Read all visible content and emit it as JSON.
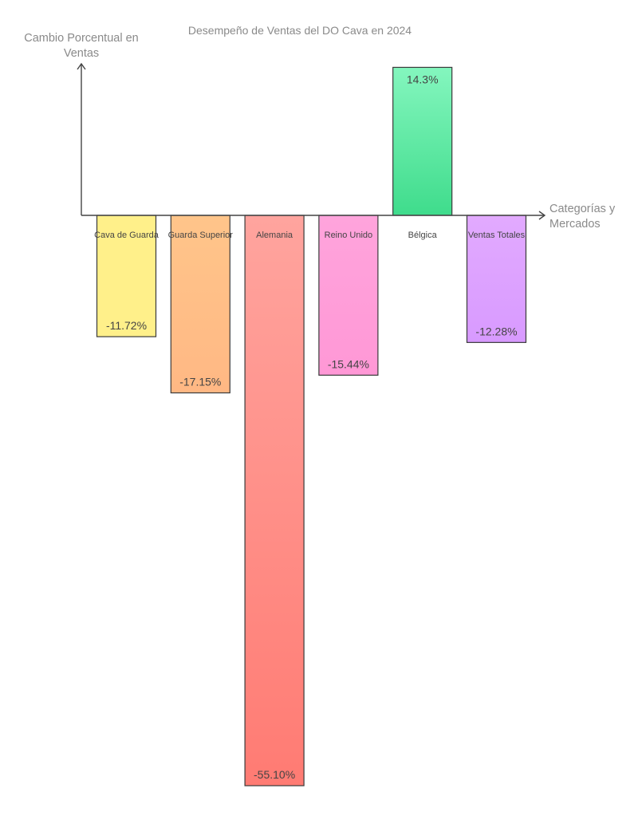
{
  "chart_data": {
    "type": "bar",
    "title": "Desempeño de Ventas del DO Cava en 2024",
    "ylabel": [
      "Cambio Porcentual en",
      "Ventas"
    ],
    "xlabel": [
      "Categorías y",
      "Mercados"
    ],
    "categories": [
      "Cava de Guarda",
      "Guarda Superior",
      "Alemania",
      "Reino Unido",
      "Bélgica",
      "Ventas Totales"
    ],
    "values": [
      -11.72,
      -17.15,
      -55.1,
      -15.44,
      14.3,
      -12.28
    ],
    "value_labels": [
      "-11.72%",
      "-17.15%",
      "-55.10%",
      "-15.44%",
      "14.3%",
      "-12.28%"
    ],
    "colors": [
      {
        "top": "#fff08a",
        "bottom": "#fff08a"
      },
      {
        "top": "#ffc58a",
        "bottom": "#ffb884"
      },
      {
        "top": "#ffa49e",
        "bottom": "#ff7b73"
      },
      {
        "top": "#ffa4dc",
        "bottom": "#ff98d6"
      },
      {
        "top": "#84f6be",
        "bottom": "#3fdc8c"
      },
      {
        "top": "#e2aaff",
        "bottom": "#d89aff"
      }
    ],
    "ylim": [
      -55.1,
      14.3
    ],
    "grid": false,
    "legend": "none"
  }
}
